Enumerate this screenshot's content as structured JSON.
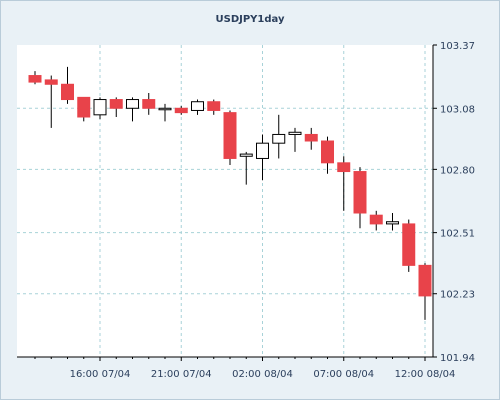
{
  "chart_data": {
    "type": "candlestick",
    "title": "USDJPY1day",
    "ylim": [
      101.94,
      103.37
    ],
    "y_ticks": [
      "103.37",
      "103.08",
      "102.80",
      "102.51",
      "102.23",
      "101.94"
    ],
    "x_ticks": [
      "16:00 07/04",
      "21:00 07/04",
      "02:00 08/04",
      "07:00 08/04",
      "12:00 08/04"
    ],
    "grid": true,
    "colors": {
      "background": "#e9f1f6",
      "plot": "#ffffff",
      "bear": "#e8434a",
      "bull": "#ffffff",
      "grid": "#a8d2d8",
      "text": "#2b3f5c"
    },
    "candles": [
      {
        "o": 103.23,
        "h": 103.25,
        "l": 103.19,
        "c": 103.2
      },
      {
        "o": 103.21,
        "h": 103.23,
        "l": 102.99,
        "c": 103.19
      },
      {
        "o": 103.19,
        "h": 103.27,
        "l": 103.1,
        "c": 103.12
      },
      {
        "o": 103.13,
        "h": 103.13,
        "l": 103.02,
        "c": 103.04
      },
      {
        "o": 103.05,
        "h": 103.13,
        "l": 103.03,
        "c": 103.12
      },
      {
        "o": 103.12,
        "h": 103.13,
        "l": 103.04,
        "c": 103.08
      },
      {
        "o": 103.08,
        "h": 103.13,
        "l": 103.02,
        "c": 103.12
      },
      {
        "o": 103.12,
        "h": 103.15,
        "l": 103.05,
        "c": 103.08
      },
      {
        "o": 103.08,
        "h": 103.1,
        "l": 103.02,
        "c": 103.08
      },
      {
        "o": 103.08,
        "h": 103.09,
        "l": 103.05,
        "c": 103.06
      },
      {
        "o": 103.07,
        "h": 103.12,
        "l": 103.05,
        "c": 103.11
      },
      {
        "o": 103.11,
        "h": 103.12,
        "l": 103.05,
        "c": 103.07
      },
      {
        "o": 103.06,
        "h": 103.07,
        "l": 102.82,
        "c": 102.85
      },
      {
        "o": 102.86,
        "h": 102.88,
        "l": 102.73,
        "c": 102.87
      },
      {
        "o": 102.85,
        "h": 102.96,
        "l": 102.75,
        "c": 102.92
      },
      {
        "o": 102.92,
        "h": 103.05,
        "l": 102.85,
        "c": 102.96
      },
      {
        "o": 102.96,
        "h": 102.99,
        "l": 102.88,
        "c": 102.97
      },
      {
        "o": 102.96,
        "h": 102.99,
        "l": 102.89,
        "c": 102.93
      },
      {
        "o": 102.93,
        "h": 102.95,
        "l": 102.78,
        "c": 102.83
      },
      {
        "o": 102.83,
        "h": 102.86,
        "l": 102.61,
        "c": 102.79
      },
      {
        "o": 102.79,
        "h": 102.81,
        "l": 102.53,
        "c": 102.6
      },
      {
        "o": 102.59,
        "h": 102.61,
        "l": 102.52,
        "c": 102.55
      },
      {
        "o": 102.55,
        "h": 102.6,
        "l": 102.52,
        "c": 102.56
      },
      {
        "o": 102.55,
        "h": 102.57,
        "l": 102.33,
        "c": 102.36
      },
      {
        "o": 102.36,
        "h": 102.37,
        "l": 102.11,
        "c": 102.22
      }
    ]
  }
}
